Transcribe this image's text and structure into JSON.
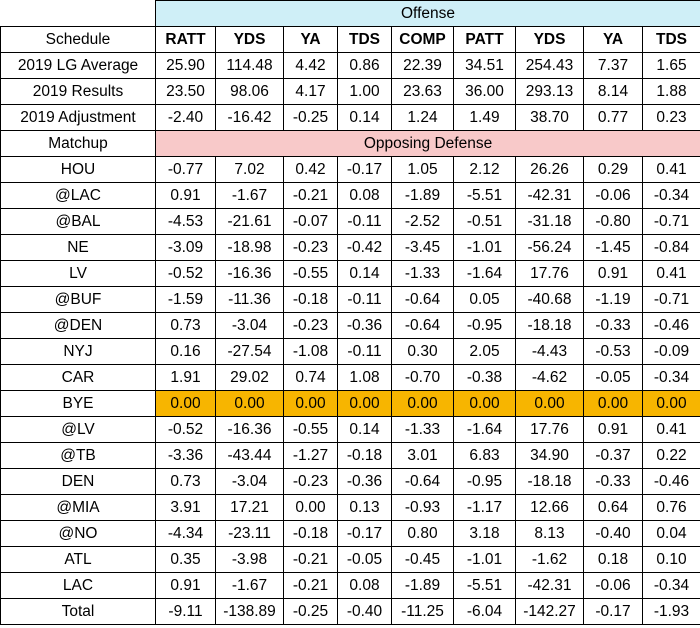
{
  "headers": {
    "offense": "Offense",
    "schedule": "Schedule",
    "matchup": "Matchup",
    "opposing_defense": "Opposing Defense",
    "columns": [
      "RATT",
      "YDS",
      "YA",
      "TDS",
      "COMP",
      "PATT",
      "YDS",
      "YA",
      "TDS"
    ]
  },
  "summary_rows": [
    {
      "label": "2019 LG Average",
      "values": [
        "25.90",
        "114.48",
        "4.42",
        "0.86",
        "22.39",
        "34.51",
        "254.43",
        "7.37",
        "1.65"
      ]
    },
    {
      "label": "2019 Results",
      "values": [
        "23.50",
        "98.06",
        "4.17",
        "1.00",
        "23.63",
        "36.00",
        "293.13",
        "8.14",
        "1.88"
      ]
    },
    {
      "label": "2019 Adjustment",
      "values": [
        "-2.40",
        "-16.42",
        "-0.25",
        "0.14",
        "1.24",
        "1.49",
        "38.70",
        "0.77",
        "0.23"
      ]
    }
  ],
  "matchup_rows": [
    {
      "label": "HOU",
      "values": [
        "-0.77",
        "7.02",
        "0.42",
        "-0.17",
        "1.05",
        "2.12",
        "26.26",
        "0.29",
        "0.41"
      ]
    },
    {
      "label": "@LAC",
      "values": [
        "0.91",
        "-1.67",
        "-0.21",
        "0.08",
        "-1.89",
        "-5.51",
        "-42.31",
        "-0.06",
        "-0.34"
      ]
    },
    {
      "label": "@BAL",
      "values": [
        "-4.53",
        "-21.61",
        "-0.07",
        "-0.11",
        "-2.52",
        "-0.51",
        "-31.18",
        "-0.80",
        "-0.71"
      ]
    },
    {
      "label": "NE",
      "values": [
        "-3.09",
        "-18.98",
        "-0.23",
        "-0.42",
        "-3.45",
        "-1.01",
        "-56.24",
        "-1.45",
        "-0.84"
      ]
    },
    {
      "label": "LV",
      "values": [
        "-0.52",
        "-16.36",
        "-0.55",
        "0.14",
        "-1.33",
        "-1.64",
        "17.76",
        "0.91",
        "0.41"
      ]
    },
    {
      "label": "@BUF",
      "values": [
        "-1.59",
        "-11.36",
        "-0.18",
        "-0.11",
        "-0.64",
        "0.05",
        "-40.68",
        "-1.19",
        "-0.71"
      ]
    },
    {
      "label": "@DEN",
      "values": [
        "0.73",
        "-3.04",
        "-0.23",
        "-0.36",
        "-0.64",
        "-0.95",
        "-18.18",
        "-0.33",
        "-0.46"
      ]
    },
    {
      "label": "NYJ",
      "values": [
        "0.16",
        "-27.54",
        "-1.08",
        "-0.11",
        "0.30",
        "2.05",
        "-4.43",
        "-0.53",
        "-0.09"
      ]
    },
    {
      "label": "CAR",
      "values": [
        "1.91",
        "29.02",
        "0.74",
        "1.08",
        "-0.70",
        "-0.38",
        "-4.62",
        "-0.05",
        "-0.34"
      ]
    },
    {
      "label": "BYE",
      "values": [
        "0.00",
        "0.00",
        "0.00",
        "0.00",
        "0.00",
        "0.00",
        "0.00",
        "0.00",
        "0.00"
      ],
      "highlight": true
    },
    {
      "label": "@LV",
      "values": [
        "-0.52",
        "-16.36",
        "-0.55",
        "0.14",
        "-1.33",
        "-1.64",
        "17.76",
        "0.91",
        "0.41"
      ]
    },
    {
      "label": "@TB",
      "values": [
        "-3.36",
        "-43.44",
        "-1.27",
        "-0.18",
        "3.01",
        "6.83",
        "34.90",
        "-0.37",
        "0.22"
      ]
    },
    {
      "label": "DEN",
      "values": [
        "0.73",
        "-3.04",
        "-0.23",
        "-0.36",
        "-0.64",
        "-0.95",
        "-18.18",
        "-0.33",
        "-0.46"
      ]
    },
    {
      "label": "@MIA",
      "values": [
        "3.91",
        "17.21",
        "0.00",
        "0.13",
        "-0.93",
        "-1.17",
        "12.66",
        "0.64",
        "0.76"
      ]
    },
    {
      "label": "@NO",
      "values": [
        "-4.34",
        "-23.11",
        "-0.18",
        "-0.17",
        "0.80",
        "3.18",
        "8.13",
        "-0.40",
        "0.04"
      ]
    },
    {
      "label": "ATL",
      "values": [
        "0.35",
        "-3.98",
        "-0.21",
        "-0.05",
        "-0.45",
        "-1.01",
        "-1.62",
        "0.18",
        "0.10"
      ]
    },
    {
      "label": "LAC",
      "values": [
        "0.91",
        "-1.67",
        "-0.21",
        "0.08",
        "-1.89",
        "-5.51",
        "-42.31",
        "-0.06",
        "-0.34"
      ]
    },
    {
      "label": "Total",
      "values": [
        "-9.11",
        "-138.89",
        "-0.25",
        "-0.40",
        "-11.25",
        "-6.04",
        "-142.27",
        "-0.17",
        "-1.93"
      ]
    }
  ],
  "colors": {
    "offense_header_bg": "#cfeff7",
    "defense_header_bg": "#f8c9c9",
    "bye_highlight": "#f7b500"
  }
}
